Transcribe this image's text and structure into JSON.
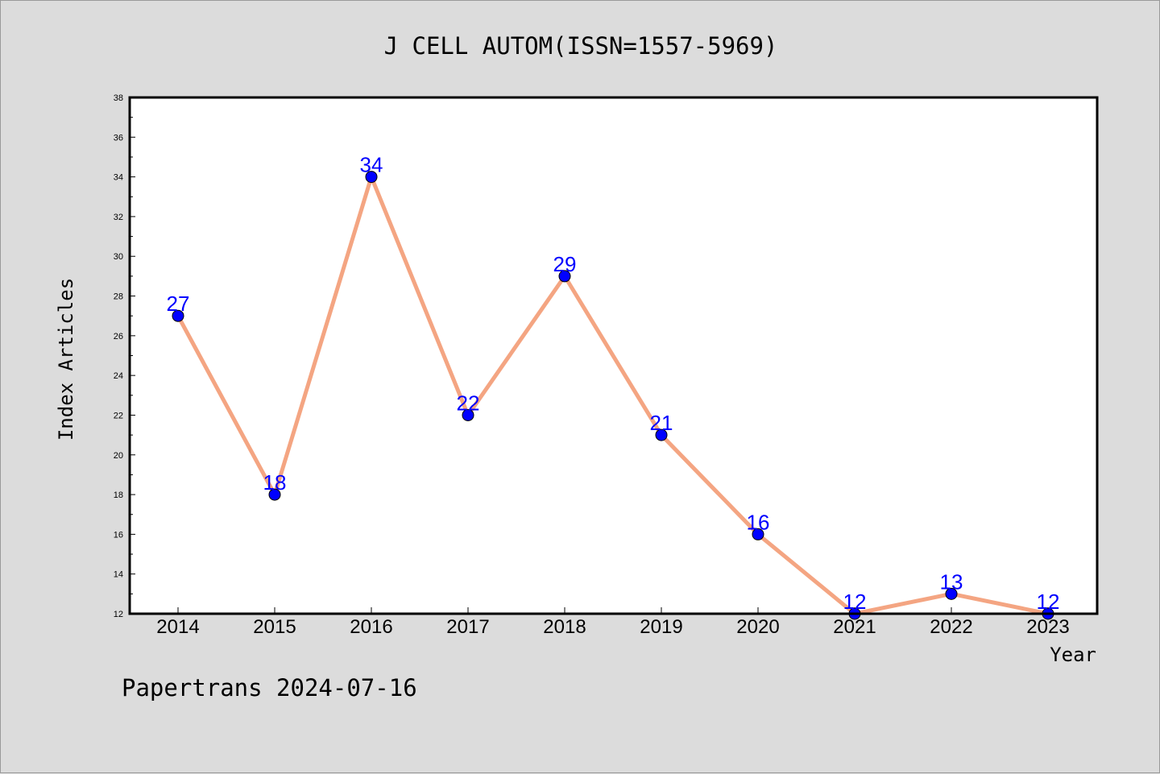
{
  "chart_data": {
    "type": "line",
    "title": "J CELL AUTOM(ISSN=1557-5969)",
    "xlabel": "Year",
    "ylabel": "Index Articles",
    "categories": [
      "2014",
      "2015",
      "2016",
      "2017",
      "2018",
      "2019",
      "2020",
      "2021",
      "2022",
      "2023"
    ],
    "series": [
      {
        "values": [
          27,
          18,
          34,
          22,
          29,
          21,
          16,
          12,
          13,
          12
        ]
      }
    ],
    "ylim": [
      12,
      38
    ],
    "yticks": [
      12,
      14,
      16,
      18,
      20,
      22,
      24,
      26,
      28,
      30,
      32,
      34,
      36,
      38
    ],
    "grid": false,
    "line_color": "#f4a582",
    "marker_color": "#0000ff",
    "label_color": "#0000ff",
    "data_labels": true
  },
  "footer": "Papertrans 2024-07-16",
  "colors": {
    "background": "#dcdcdc",
    "plot_background": "#ffffff"
  }
}
